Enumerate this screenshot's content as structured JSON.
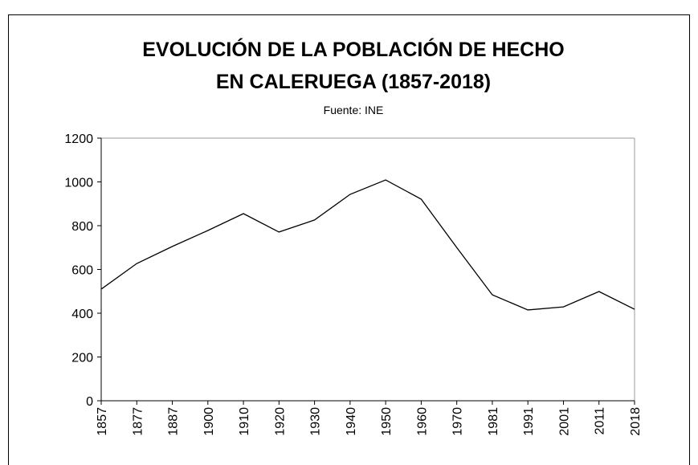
{
  "chart_data": {
    "type": "line",
    "title_lines": [
      "EVOLUCIÓN DE LA POBLACIÓN DE HECHO",
      "EN CALERUEGA (1857-2018)"
    ],
    "subtitle": "Fuente: INE",
    "categories": [
      "1857",
      "1877",
      "1887",
      "1900",
      "1910",
      "1920",
      "1930",
      "1940",
      "1950",
      "1960",
      "1970",
      "1981",
      "1991",
      "2001",
      "2011",
      "2018"
    ],
    "values": [
      510,
      627,
      705,
      778,
      855,
      771,
      826,
      943,
      1009,
      921,
      700,
      484,
      415,
      429,
      499,
      418
    ],
    "color": "#000000",
    "ylim": [
      0,
      1200
    ],
    "yticks": [
      0,
      200,
      400,
      600,
      800,
      1000,
      1200
    ]
  }
}
